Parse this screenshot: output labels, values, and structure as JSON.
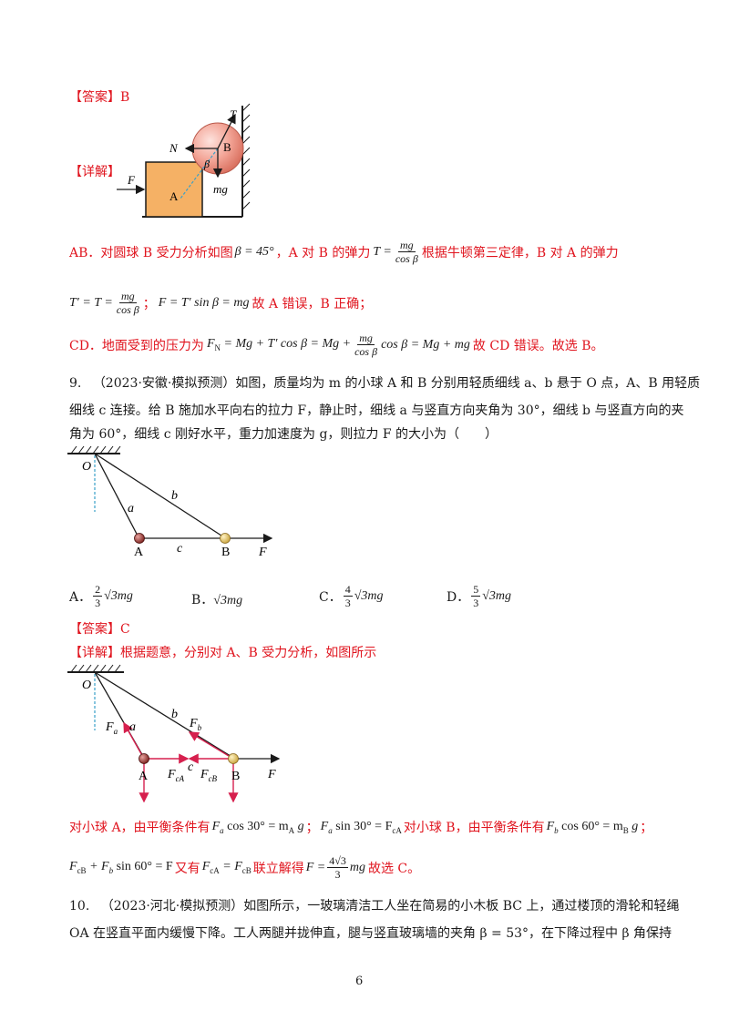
{
  "answer8": {
    "label": "【答案】",
    "value": "B"
  },
  "detail8": {
    "label": "【详解】"
  },
  "fig8": {
    "T": "T",
    "N": "N",
    "B": "B",
    "beta": "β",
    "mg": "mg",
    "F": "F",
    "A": "A"
  },
  "sol8": {
    "line1_prefix": "AB．对圆球 B 受力分析如图",
    "line1_mid": "，A 对 B 的弹力",
    "line1_suffix": "根据牛顿第三定律，B 对 A 的弹力",
    "line2_mid": "；",
    "line2_suffix": "故 A 错误，B 正确；",
    "line3_prefix": "CD．地面受到的压力为",
    "line3_suffix": "故 CD 错误。故选 B。",
    "eq_beta": "β = 45°",
    "eq_T_lhs": "T =",
    "eq_frac_num": "mg",
    "eq_frac_den": "cos β",
    "eq_Tprime": "T′ = T =",
    "eq_F": "F = T′ sin β = mg",
    "eq_FN": "F",
    "eq_FN_sub": "N",
    "eq_FN_rhs1": " = Mg + T′ cos β = Mg +",
    "eq_FN_rhs2": "cos β = Mg + mg"
  },
  "q9": {
    "number": "9.",
    "source": "（2023·安徽·模拟预测）",
    "line1": "如图，质量均为 m 的小球 A 和 B 分别用轻质细线 a、b 悬于 O 点，A、B 用轻质",
    "line2": "细线 c 连接。给 B 施加水平向右的拉力 F，静止时，细线 a 与竖直方向夹角为 30°，细线 b 与竖直方向的夹",
    "line3": "角为 60°，细线 c 刚好水平，重力加速度为 g，则拉力 F 的大小为（　　）"
  },
  "fig9": {
    "O": "O",
    "a": "a",
    "b": "b",
    "c": "c",
    "A": "A",
    "B": "B",
    "F": "F"
  },
  "options": [
    {
      "letter": "A．",
      "num": "2",
      "den": "3",
      "tail": "√3mg"
    },
    {
      "letter": "B．",
      "num": "",
      "den": "",
      "tail": "√3mg"
    },
    {
      "letter": "C．",
      "num": "4",
      "den": "3",
      "tail": "√3mg"
    },
    {
      "letter": "D．",
      "num": "5",
      "den": "3",
      "tail": "√3mg"
    }
  ],
  "answer9": {
    "label": "【答案】",
    "value": "C"
  },
  "detail9": {
    "label": "【详解】",
    "text": "根据题意，分别对 A、B 受力分析，如图所示"
  },
  "fig10": {
    "O": "O",
    "Fa": "F",
    "Fa_sub": "a",
    "a": "a",
    "b": "b",
    "Fb": "F",
    "Fb_sub": "b",
    "FcA": "F",
    "FcA_sub": "cA",
    "c": "c",
    "FcB": "F",
    "FcB_sub": "cB",
    "A": "A",
    "B": "B",
    "F": "F"
  },
  "sol9": {
    "t1": "对小球 A，由平衡条件有",
    "eq1": "F",
    "eq1_sub": "a",
    "eq1_rhs": " cos 30° = m",
    "eq1_sub2": "A",
    "eq1_end": " g",
    "sep1": "；",
    "eq2": "F",
    "eq2_sub": "a",
    "eq2_rhs": " sin 30° = F",
    "eq2_sub2": "cA",
    "t2": "对小球 B，由平衡条件有",
    "eq3": "F",
    "eq3_sub": "b",
    "eq3_rhs": " cos 60° = m",
    "eq3_sub2": "B",
    "eq3_end": " g",
    "sep2": "；",
    "eq4": "F",
    "eq4_sub": "cB",
    "eq4_rhs": " + F",
    "eq4_sub2": "b",
    "eq4_end": " sin 60° = F",
    "t3": "又有",
    "eq5": "F",
    "eq5_sub": "cA",
    "eq5_rhs": " = F",
    "eq5_sub2": "cB",
    "t4": "联立解得",
    "eq6_lhs": "F =",
    "eq6_num": "4√3",
    "eq6_den": "3",
    "eq6_end": "mg",
    "t5": "故选 C。"
  },
  "q10": {
    "number": "10.",
    "source": "（2023·河北·模拟预测）",
    "line1": "如图所示，一玻璃清洁工人坐在简易的小木板 BC 上，通过楼顶的滑轮和轻绳",
    "line2": "OA 在竖直平面内缓慢下降。工人两腿并拢伸直，腿与竖直玻璃墙的夹角 β = 53°，在下降过程中 β 角保持"
  },
  "page_number": "6"
}
